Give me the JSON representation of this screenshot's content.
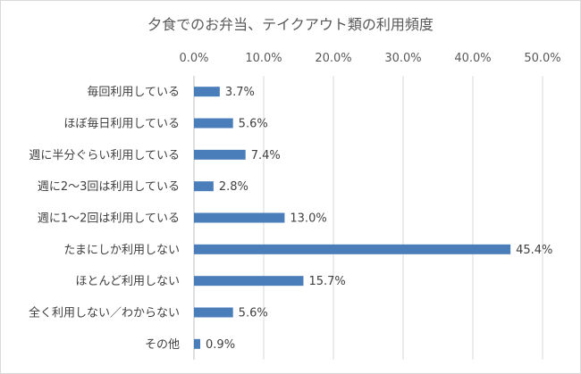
{
  "chart_data": {
    "type": "bar",
    "orientation": "horizontal",
    "title": "夕食でのお弁当、テイクアウト類の利用頻度",
    "xlabel": "",
    "ylabel": "",
    "xlim": [
      0,
      50
    ],
    "x_ticks": [
      0,
      10,
      20,
      30,
      40,
      50
    ],
    "x_tick_labels": [
      "0.0%",
      "10.0%",
      "20.0%",
      "30.0%",
      "40.0%",
      "50.0%"
    ],
    "x_axis_position": "top",
    "grid": true,
    "legend": "none",
    "bar_color": "#4a7ebb",
    "categories": [
      "毎回利用している",
      "ほぼ毎日利用している",
      "週に半分ぐらい利用している",
      "週に2〜3回は利用している",
      "週に1〜2回は利用している",
      "たまにしか利用しない",
      "ほとんど利用しない",
      "全く利用しない／わからない",
      "その他"
    ],
    "values": [
      3.7,
      5.6,
      7.4,
      2.8,
      13.0,
      45.4,
      15.7,
      5.6,
      0.9
    ],
    "value_labels": [
      "3.7%",
      "5.6%",
      "7.4%",
      "2.8%",
      "13.0%",
      "45.4%",
      "15.7%",
      "5.6%",
      "0.9%"
    ]
  }
}
